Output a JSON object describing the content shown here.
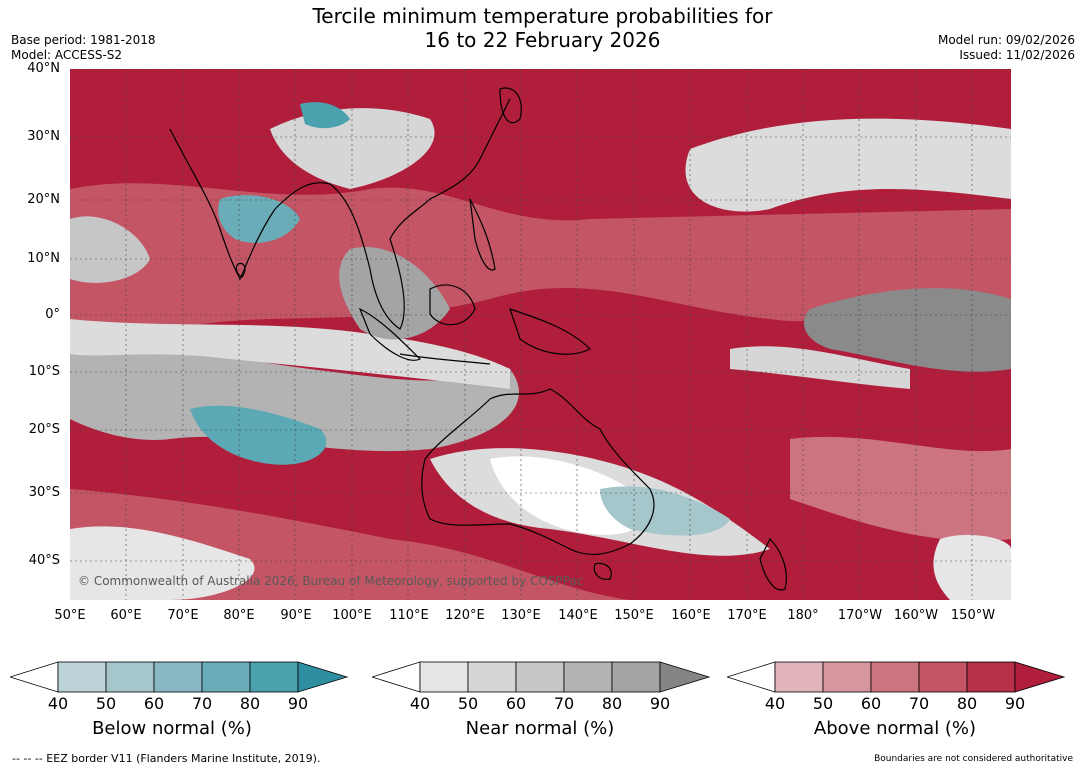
{
  "title": {
    "line1": "Tercile minimum temperature probabilities for",
    "line2": "16 to 22 February 2026"
  },
  "meta_left": {
    "base_period": "Base period: 1981-2018",
    "model": "Model: ACCESS-S2"
  },
  "meta_right": {
    "model_run": "Model run: 09/02/2026",
    "issued": "Issued: 11/02/2026"
  },
  "lat_labels": [
    "40°N",
    "30°N",
    "20°N",
    "10°N",
    "0°",
    "10°S",
    "20°S",
    "30°S",
    "40°S"
  ],
  "lon_labels": [
    "50°E",
    "60°E",
    "70°E",
    "80°E",
    "90°E",
    "100°E",
    "110°E",
    "120°E",
    "130°E",
    "140°E",
    "150°E",
    "160°E",
    "170°E",
    "180°",
    "170°W",
    "160°W",
    "150°W"
  ],
  "copyright": "© Commonwealth of Australia 2026, Bureau of Meteorology, supported by COSPPac",
  "colorbars": [
    {
      "title": "Below normal (%)",
      "ticks": [
        "40",
        "50",
        "60",
        "70",
        "80",
        "90"
      ],
      "colors": [
        "#ffffff",
        "#bcd3da",
        "#a5c6cb",
        "#89b7c4",
        "#6aacb7",
        "#4ba1ae",
        "#2f8fa0"
      ]
    },
    {
      "title": "Near normal (%)",
      "ticks": [
        "40",
        "50",
        "60",
        "70",
        "80",
        "90"
      ],
      "colors": [
        "#ffffff",
        "#e6e6e6",
        "#d6d6d6",
        "#c6c6c6",
        "#b3b3b3",
        "#a4a4a4",
        "#858585"
      ]
    },
    {
      "title": "Above normal (%)",
      "ticks": [
        "40",
        "50",
        "60",
        "70",
        "80",
        "90"
      ],
      "colors": [
        "#ffffff",
        "#e1b3bb",
        "#d6969f",
        "#cc747f",
        "#c35565",
        "#b63047",
        "#b01e3c"
      ]
    }
  ],
  "footer_left": "--  --  -- EEZ border V11 (Flanders Marine Institute, 2019).",
  "footer_right": "Boundaries are not considered authoritative",
  "map_colors": {
    "above_strong": "#b01e3c",
    "above_mid": "#c35565",
    "above_light": "#dba0aa",
    "near_light": "#dcdcdc",
    "near_dark": "#8a8a8a",
    "below": "#5aa9b5",
    "land": "#000000"
  }
}
